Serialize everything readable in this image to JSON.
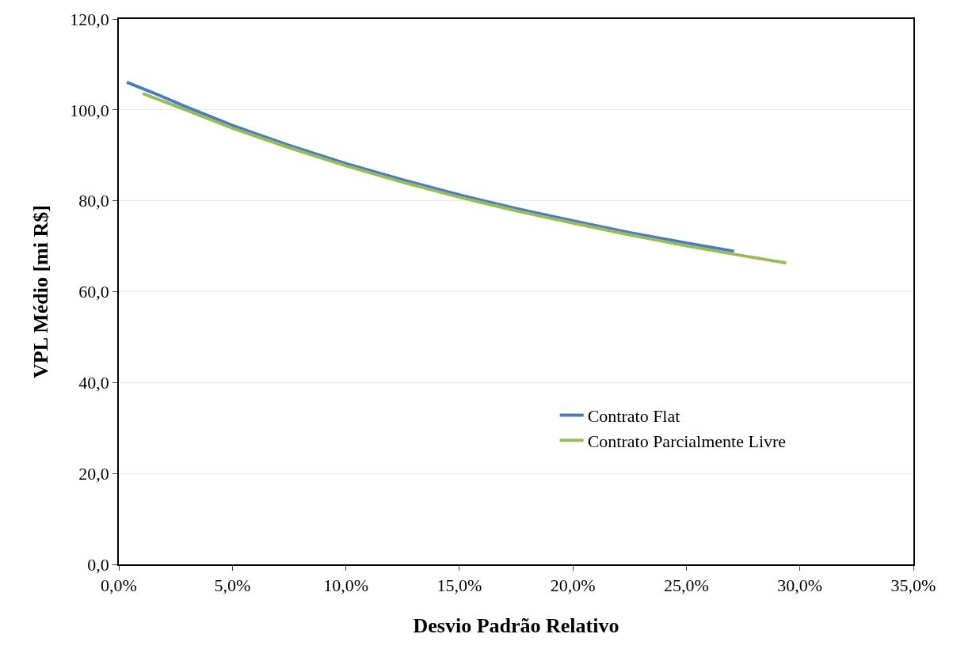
{
  "chart_data": {
    "type": "line",
    "xlabel": "Desvio Padrão Relativo",
    "ylabel": "VPL Médio [mi R$]",
    "series": [
      {
        "name": "Contrato Flat",
        "color": "#4a7ebb",
        "x": [
          0.35,
          1.5,
          3,
          5,
          7.5,
          10,
          12.5,
          15,
          17.5,
          20,
          22.5,
          25,
          27.1
        ],
        "values": [
          106.1,
          103.8,
          100.6,
          96.6,
          92.2,
          88.2,
          84.6,
          81.3,
          78.3,
          75.6,
          73.0,
          70.7,
          68.9
        ]
      },
      {
        "name": "Contrato Parcialmente Livre",
        "color": "#9bbb59",
        "x": [
          1.05,
          3,
          5,
          7.5,
          10,
          12.5,
          15,
          17.5,
          20,
          22.5,
          25,
          27.5,
          29.4
        ],
        "values": [
          103.6,
          99.9,
          96.0,
          91.7,
          87.7,
          84.1,
          80.8,
          77.8,
          75.1,
          72.5,
          70.1,
          67.9,
          66.3
        ]
      }
    ],
    "xlim": [
      0,
      35
    ],
    "ylim": [
      0,
      120
    ],
    "xticks": [
      {
        "value": 0,
        "label": "0,0%"
      },
      {
        "value": 5,
        "label": "5,0%"
      },
      {
        "value": 10,
        "label": "10,0%"
      },
      {
        "value": 15,
        "label": "15,0%"
      },
      {
        "value": 20,
        "label": "20,0%"
      },
      {
        "value": 25,
        "label": "25,0%"
      },
      {
        "value": 30,
        "label": "30,0%"
      },
      {
        "value": 35,
        "label": "35,0%"
      }
    ],
    "yticks": [
      {
        "value": 0,
        "label": "0,0"
      },
      {
        "value": 20,
        "label": "20,0"
      },
      {
        "value": 40,
        "label": "40,0"
      },
      {
        "value": 60,
        "label": "60,0"
      },
      {
        "value": 80,
        "label": "80,0"
      },
      {
        "value": 100,
        "label": "100,0"
      },
      {
        "value": 120,
        "label": "120,0"
      }
    ],
    "grid": "y",
    "legend": "bottom right",
    "marker": "none",
    "line_style": "solid"
  }
}
